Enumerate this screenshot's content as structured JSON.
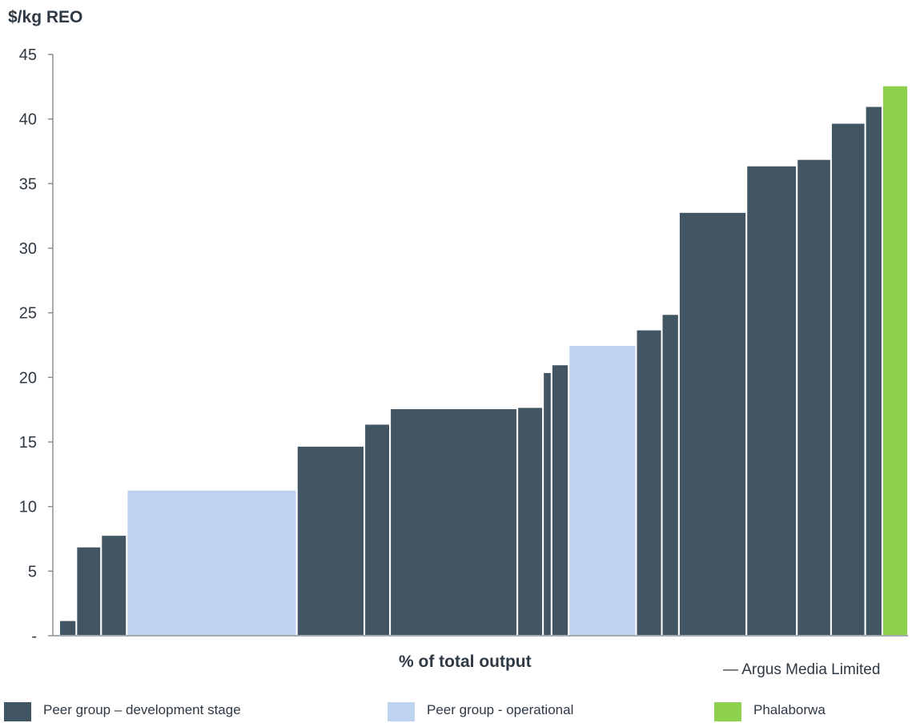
{
  "chart_data": {
    "type": "bar",
    "ylabel": "$/kg REO",
    "xlabel": "% of total output",
    "credit": "— Argus Media Limited",
    "ylim": [
      0,
      45
    ],
    "yticks": [
      "-",
      "5",
      "10",
      "15",
      "20",
      "25",
      "30",
      "35",
      "40",
      "45"
    ],
    "colors": {
      "development": "#425563",
      "operational": "#bed3f0",
      "phalaborwa": "#8fd14f"
    },
    "series": [
      {
        "name": "Peer group – development stage",
        "key": "development"
      },
      {
        "name": "Peer group - operational",
        "key": "operational"
      },
      {
        "name": "Phalaborwa",
        "key": "phalaborwa"
      }
    ],
    "bars": [
      {
        "share": 2.0,
        "value": 1.2,
        "group": "development"
      },
      {
        "share": 2.9,
        "value": 6.9,
        "group": "development"
      },
      {
        "share": 3.0,
        "value": 7.8,
        "group": "development"
      },
      {
        "share": 19.9,
        "value": 11.3,
        "group": "operational"
      },
      {
        "share": 7.9,
        "value": 14.7,
        "group": "development"
      },
      {
        "share": 3.0,
        "value": 16.4,
        "group": "development"
      },
      {
        "share": 14.9,
        "value": 17.6,
        "group": "development"
      },
      {
        "share": 3.0,
        "value": 17.7,
        "group": "development"
      },
      {
        "share": 1.0,
        "value": 20.4,
        "group": "development"
      },
      {
        "share": 2.0,
        "value": 21.0,
        "group": "development"
      },
      {
        "share": 7.9,
        "value": 22.5,
        "group": "operational"
      },
      {
        "share": 3.0,
        "value": 23.7,
        "group": "development"
      },
      {
        "share": 2.0,
        "value": 24.9,
        "group": "development"
      },
      {
        "share": 7.9,
        "value": 32.8,
        "group": "development"
      },
      {
        "share": 5.9,
        "value": 36.4,
        "group": "development"
      },
      {
        "share": 4.0,
        "value": 36.9,
        "group": "development"
      },
      {
        "share": 4.0,
        "value": 39.7,
        "group": "development"
      },
      {
        "share": 2.0,
        "value": 41.0,
        "group": "development"
      },
      {
        "share": 3.0,
        "value": 42.6,
        "group": "phalaborwa"
      }
    ]
  }
}
